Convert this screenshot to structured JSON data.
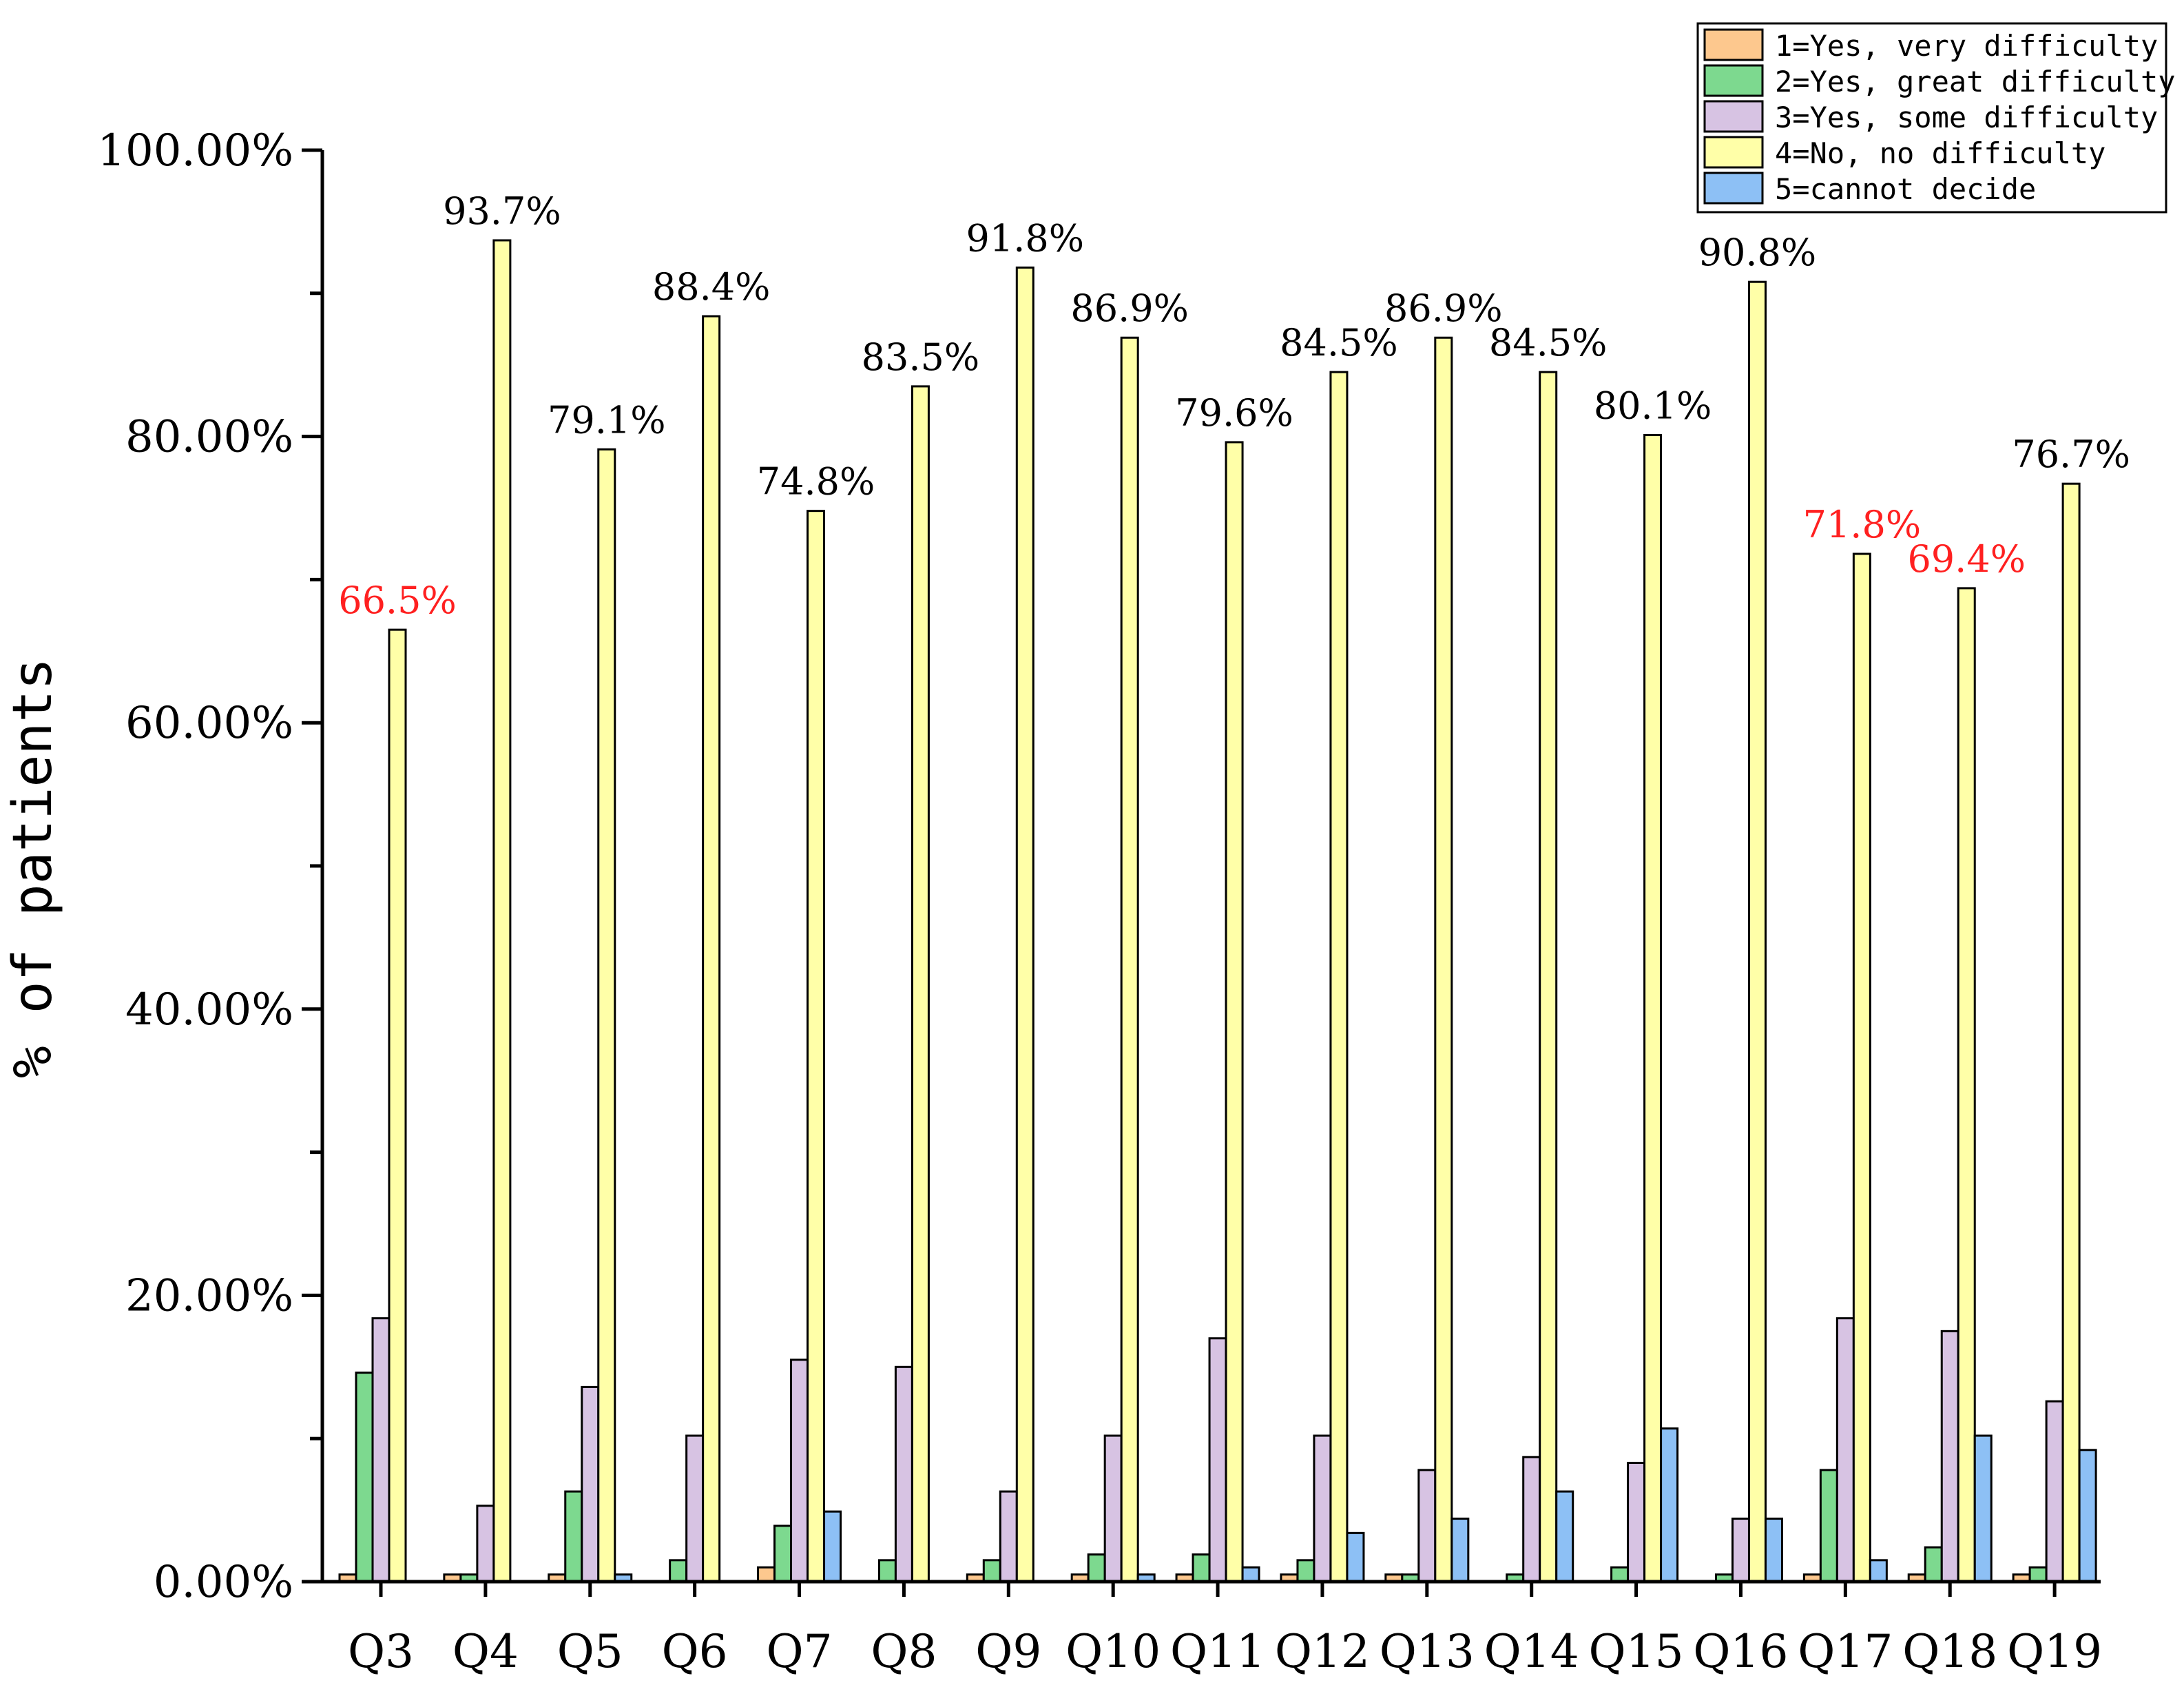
{
  "chart_data": {
    "type": "bar",
    "title": "",
    "xlabel": "",
    "ylabel": "% of patients",
    "ylim": [
      0,
      100
    ],
    "yticks": [
      0,
      20,
      40,
      60,
      80,
      100
    ],
    "ytick_labels": [
      "0.00%",
      "20.00%",
      "40.00%",
      "60.00%",
      "80.00%",
      "100.00%"
    ],
    "grid": false,
    "legend_position": "top-right",
    "categories": [
      "Q3",
      "Q4",
      "Q5",
      "Q6",
      "Q7",
      "Q8",
      "Q9",
      "Q10",
      "Q11",
      "Q12",
      "Q13",
      "Q14",
      "Q15",
      "Q16",
      "Q17",
      "Q18",
      "Q19"
    ],
    "series": [
      {
        "name": "1=Yes, very difficulty",
        "color": "#FDC88E",
        "values": [
          0.5,
          0.5,
          0.5,
          0,
          1.0,
          0,
          0.5,
          0.5,
          0.5,
          0.5,
          0.5,
          0,
          0,
          0,
          0.5,
          0.5,
          0.5
        ]
      },
      {
        "name": "2=Yes, great difficulty",
        "color": "#7DD98F",
        "values": [
          14.6,
          0.5,
          6.3,
          1.5,
          3.9,
          1.5,
          1.5,
          1.9,
          1.9,
          1.5,
          0.5,
          0.5,
          1.0,
          0.5,
          7.8,
          2.4,
          1.0
        ]
      },
      {
        "name": "3=Yes, some difficulty",
        "color": "#D7C3E3",
        "values": [
          18.4,
          5.3,
          13.6,
          10.2,
          15.5,
          15.0,
          6.3,
          10.2,
          17.0,
          10.2,
          7.8,
          8.7,
          8.3,
          4.4,
          18.4,
          17.5,
          12.6
        ]
      },
      {
        "name": "4=No, no difficulty",
        "color": "#FFFFA8",
        "values": [
          66.5,
          93.7,
          79.1,
          88.4,
          74.8,
          83.5,
          91.8,
          86.9,
          79.6,
          84.5,
          86.9,
          84.5,
          80.1,
          90.8,
          71.8,
          69.4,
          76.7
        ]
      },
      {
        "name": "5=cannot decide",
        "color": "#8DC0F5",
        "values": [
          0,
          0,
          0.5,
          0,
          4.9,
          0,
          0,
          0.5,
          1.0,
          3.4,
          4.4,
          6.3,
          10.7,
          4.4,
          1.5,
          10.2,
          9.2
        ]
      }
    ],
    "data_labels": [
      "66.5%",
      "93.7%",
      "79.1%",
      "88.4%",
      "74.8%",
      "83.5%",
      "91.8%",
      "86.9%",
      "79.6%",
      "84.5%",
      "86.9%",
      "84.5%",
      "80.1%",
      "90.8%",
      "71.8%",
      "69.4%",
      "76.7%"
    ],
    "data_label_colors": [
      "#FF2020",
      "#000000",
      "#000000",
      "#000000",
      "#000000",
      "#000000",
      "#000000",
      "#000000",
      "#000000",
      "#000000",
      "#000000",
      "#000000",
      "#000000",
      "#000000",
      "#FF2020",
      "#FF2020",
      "#000000"
    ]
  }
}
